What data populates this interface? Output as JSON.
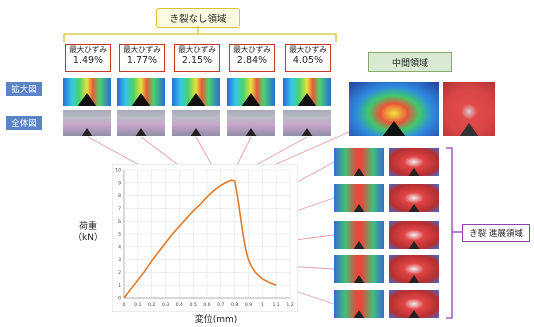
{
  "header": {
    "no_crack_label": "き裂なし領域"
  },
  "strain_boxes": [
    {
      "label": "最大ひずみ",
      "value": "1.49%"
    },
    {
      "label": "最大ひずみ",
      "value": "1.77%"
    },
    {
      "label": "最大ひずみ",
      "value": "2.15%"
    },
    {
      "label": "最大ひずみ",
      "value": "2.84%"
    },
    {
      "label": "最大ひずみ",
      "value": "4.05%"
    }
  ],
  "row_labels": {
    "enlarged": "拡大図",
    "overall": "全体図"
  },
  "mid_region_label": "中間領域",
  "crack_region_label": "き裂 進展領域",
  "colors": {
    "curve": "#e07b2a",
    "leader": "#e6a0a8",
    "tag": "#5b84c4",
    "bracket": "#8e44ad"
  },
  "chart_data": {
    "type": "line",
    "xlabel": "変位(mm)",
    "ylabel": "荷重",
    "ylabel_unit": "（kN）",
    "xlim": [
      0,
      1.2
    ],
    "ylim": [
      0,
      10
    ],
    "x_ticks": [
      "0",
      "0.1",
      "0.2",
      "0.3",
      "0.4",
      "0.5",
      "0.6",
      "0.7",
      "0.8",
      "0.9",
      "1",
      "1.1",
      "1.2"
    ],
    "y_ticks": [
      "0",
      "1",
      "2",
      "3",
      "4",
      "5",
      "6",
      "7",
      "8",
      "9",
      "10"
    ],
    "grid": true,
    "series": [
      {
        "x": [
          0,
          0.05,
          0.1,
          0.15,
          0.2,
          0.25,
          0.3,
          0.35,
          0.4,
          0.45,
          0.5,
          0.55,
          0.6,
          0.65,
          0.7,
          0.75,
          0.78,
          0.8,
          0.82,
          0.84,
          0.86,
          0.88,
          0.9,
          0.92,
          0.95,
          1.0,
          1.05,
          1.1
        ],
        "y": [
          0,
          0.7,
          1.4,
          2.1,
          2.9,
          3.6,
          4.3,
          5.0,
          5.6,
          6.2,
          6.8,
          7.3,
          7.9,
          8.4,
          8.8,
          9.1,
          9.2,
          9.15,
          8.0,
          6.5,
          5.0,
          3.8,
          3.0,
          2.5,
          2.0,
          1.5,
          1.2,
          1.0
        ]
      }
    ]
  }
}
